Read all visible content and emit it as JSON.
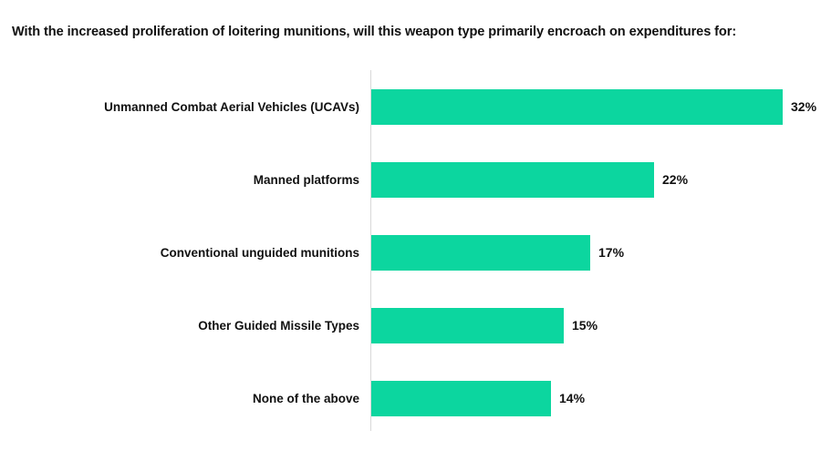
{
  "page": {
    "background": "#FFFFFF"
  },
  "chart_data": {
    "type": "bar",
    "orientation": "horizontal",
    "title": "With the increased proliferation of loitering munitions, will this weapon type primarily encroach on expenditures for:",
    "categories": [
      "Unmanned Combat Aerial Vehicles (UCAVs)",
      "Manned platforms",
      "Conventional unguided munitions",
      "Other Guided Missile Types",
      "None of the above"
    ],
    "values": [
      32,
      22,
      17,
      15,
      14
    ],
    "value_labels": [
      "32%",
      "22%",
      "17%",
      "15%",
      "14%"
    ],
    "xlabel": "",
    "ylabel": "",
    "xlim": [
      0,
      32
    ],
    "grid": false,
    "legend": false,
    "bar_color": "#0CD69F",
    "axis_line_color": "#D9D9D9",
    "text_color": "#111111"
  }
}
